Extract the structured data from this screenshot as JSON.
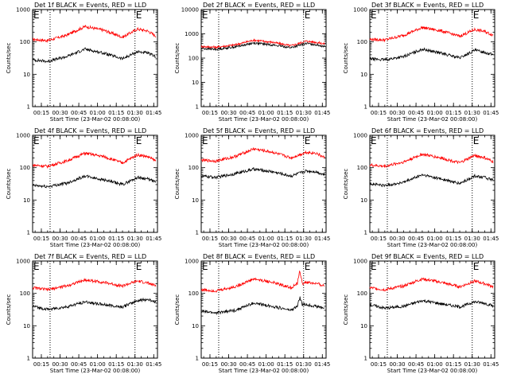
{
  "chart_data": [
    {
      "type": "line",
      "title": "Det 1f BLACK = Events, RED = LLD",
      "xlabel": "Start Time (23-Mar-02 00:08:00)",
      "ylabel": "Counts/sec",
      "yscale": "log",
      "ylim": [
        1,
        1000
      ],
      "xticklabels": [
        "00:15",
        "00:30",
        "00:45",
        "01:00",
        "01:15",
        "01:30",
        "01:45"
      ],
      "yticklabels": [
        "1",
        "10",
        "100",
        "1000"
      ],
      "event_lines": [
        "00:22",
        "01:30"
      ],
      "flag_label": "E",
      "series": [
        {
          "color": "#ff0000",
          "x": [
            "00:08",
            "00:20",
            "00:35",
            "00:50",
            "01:05",
            "01:20",
            "01:32",
            "01:40",
            "01:47"
          ],
          "values": [
            120,
            110,
            160,
            300,
            230,
            140,
            250,
            220,
            150
          ]
        },
        {
          "color": "#000000",
          "x": [
            "00:08",
            "00:20",
            "00:35",
            "00:50",
            "01:05",
            "01:20",
            "01:32",
            "01:40",
            "01:47"
          ],
          "values": [
            28,
            25,
            35,
            60,
            45,
            30,
            50,
            45,
            35
          ]
        }
      ]
    },
    {
      "type": "line",
      "title": "Det 2f BLACK = Events, RED = LLD",
      "xlabel": "Start Time (23-Mar-02 00:08:00)",
      "ylabel": "Counts/sec",
      "yscale": "log",
      "ylim": [
        1,
        10000
      ],
      "xticklabels": [
        "00:15",
        "00:30",
        "00:45",
        "01:00",
        "01:15",
        "01:30",
        "01:45"
      ],
      "yticklabels": [
        "1",
        "10",
        "100",
        "1000",
        "10000"
      ],
      "event_lines": [
        "00:22",
        "01:30"
      ],
      "flag_label": "E",
      "series": [
        {
          "color": "#ff0000",
          "x": [
            "00:08",
            "00:20",
            "00:35",
            "00:50",
            "01:05",
            "01:20",
            "01:32",
            "01:40",
            "01:47"
          ],
          "values": [
            300,
            280,
            350,
            550,
            450,
            320,
            500,
            450,
            380
          ]
        },
        {
          "color": "#000000",
          "x": [
            "00:08",
            "00:20",
            "00:35",
            "00:50",
            "01:05",
            "01:20",
            "01:32",
            "01:40",
            "01:47"
          ],
          "values": [
            250,
            230,
            290,
            420,
            350,
            270,
            400,
            360,
            300
          ]
        }
      ]
    },
    {
      "type": "line",
      "title": "Det 3f BLACK = Events, RED = LLD",
      "xlabel": "Start Time (23-Mar-02 00:08:00)",
      "ylabel": "Counts/sec",
      "yscale": "log",
      "ylim": [
        1,
        1000
      ],
      "xticklabels": [
        "00:15",
        "00:30",
        "00:45",
        "01:00",
        "01:15",
        "01:30",
        "01:45"
      ],
      "yticklabels": [
        "1",
        "10",
        "100",
        "1000"
      ],
      "event_lines": [
        "00:22",
        "01:30"
      ],
      "flag_label": "E",
      "series": [
        {
          "color": "#ff0000",
          "x": [
            "00:08",
            "00:20",
            "00:35",
            "00:50",
            "01:05",
            "01:20",
            "01:32",
            "01:40",
            "01:47"
          ],
          "values": [
            120,
            115,
            160,
            280,
            220,
            150,
            240,
            210,
            160
          ]
        },
        {
          "color": "#000000",
          "x": [
            "00:08",
            "00:20",
            "00:35",
            "00:50",
            "01:05",
            "01:20",
            "01:32",
            "01:40",
            "01:47"
          ],
          "values": [
            30,
            28,
            35,
            60,
            45,
            32,
            55,
            48,
            40
          ]
        }
      ]
    },
    {
      "type": "line",
      "title": "Det 4f BLACK = Events, RED = LLD",
      "xlabel": "Start Time (23-Mar-02 00:08:00)",
      "ylabel": "Counts/sec",
      "yscale": "log",
      "ylim": [
        1,
        1000
      ],
      "xticklabels": [
        "00:15",
        "00:30",
        "00:45",
        "01:00",
        "01:15",
        "01:30",
        "01:45"
      ],
      "yticklabels": [
        "1",
        "10",
        "100",
        "1000"
      ],
      "event_lines": [
        "00:22",
        "01:30"
      ],
      "flag_label": "E",
      "series": [
        {
          "color": "#ff0000",
          "x": [
            "00:08",
            "00:20",
            "00:35",
            "00:50",
            "01:05",
            "01:20",
            "01:32",
            "01:40",
            "01:47"
          ],
          "values": [
            120,
            110,
            160,
            280,
            220,
            140,
            250,
            220,
            160
          ]
        },
        {
          "color": "#000000",
          "x": [
            "00:08",
            "00:20",
            "00:35",
            "00:50",
            "01:05",
            "01:20",
            "01:32",
            "01:40",
            "01:47"
          ],
          "values": [
            28,
            26,
            33,
            55,
            42,
            30,
            50,
            45,
            35
          ]
        }
      ]
    },
    {
      "type": "line",
      "title": "Det 5f BLACK = Events, RED = LLD",
      "xlabel": "Start Time (23-Mar-02 00:08:00)",
      "ylabel": "Counts/sec",
      "yscale": "log",
      "ylim": [
        1,
        1000
      ],
      "xticklabels": [
        "00:15",
        "00:30",
        "00:45",
        "01:00",
        "01:15",
        "01:30",
        "01:45"
      ],
      "yticklabels": [
        "1",
        "10",
        "100",
        "1000"
      ],
      "event_lines": [
        "00:22",
        "01:30"
      ],
      "flag_label": "E",
      "series": [
        {
          "color": "#ff0000",
          "x": [
            "00:08",
            "00:20",
            "00:35",
            "00:50",
            "01:05",
            "01:20",
            "01:32",
            "01:40",
            "01:47"
          ],
          "values": [
            170,
            160,
            220,
            380,
            300,
            200,
            300,
            280,
            200
          ]
        },
        {
          "color": "#000000",
          "x": [
            "00:08",
            "00:20",
            "00:35",
            "00:50",
            "01:05",
            "01:20",
            "01:32",
            "01:40",
            "01:47"
          ],
          "values": [
            55,
            50,
            65,
            90,
            75,
            55,
            80,
            75,
            60
          ]
        }
      ]
    },
    {
      "type": "line",
      "title": "Det 6f BLACK = Events, RED = LLD",
      "xlabel": "Start Time (23-Mar-02 00:08:00)",
      "ylabel": "Counts/sec",
      "yscale": "log",
      "ylim": [
        1,
        1000
      ],
      "xticklabels": [
        "00:15",
        "00:30",
        "00:45",
        "01:00",
        "01:15",
        "01:30",
        "01:45"
      ],
      "yticklabels": [
        "1",
        "10",
        "100",
        "1000"
      ],
      "event_lines": [
        "00:22",
        "01:30"
      ],
      "flag_label": "E",
      "series": [
        {
          "color": "#ff0000",
          "x": [
            "00:08",
            "00:20",
            "00:35",
            "00:50",
            "01:05",
            "01:20",
            "01:32",
            "01:40",
            "01:47"
          ],
          "values": [
            120,
            110,
            150,
            260,
            200,
            140,
            240,
            200,
            150
          ]
        },
        {
          "color": "#000000",
          "x": [
            "00:08",
            "00:20",
            "00:35",
            "00:50",
            "01:05",
            "01:20",
            "01:32",
            "01:40",
            "01:47"
          ],
          "values": [
            32,
            28,
            35,
            60,
            45,
            32,
            55,
            50,
            40
          ]
        }
      ]
    },
    {
      "type": "line",
      "title": "Det 7f BLACK = Events, RED = LLD",
      "xlabel": "Start Time (23-Mar-02 00:08:00)",
      "ylabel": "Counts/sec",
      "yscale": "log",
      "ylim": [
        1,
        1000
      ],
      "xticklabels": [
        "00:15",
        "00:30",
        "00:45",
        "01:00",
        "01:15",
        "01:30",
        "01:45"
      ],
      "yticklabels": [
        "1",
        "10",
        "100",
        "1000"
      ],
      "event_lines": [
        "00:22",
        "01:30"
      ],
      "flag_label": "E",
      "series": [
        {
          "color": "#ff0000",
          "x": [
            "00:08",
            "00:20",
            "00:35",
            "00:50",
            "01:05",
            "01:20",
            "01:32",
            "01:40",
            "01:47"
          ],
          "values": [
            150,
            130,
            170,
            260,
            220,
            170,
            240,
            210,
            170
          ]
        },
        {
          "color": "#000000",
          "x": [
            "00:08",
            "00:20",
            "00:35",
            "00:50",
            "01:05",
            "01:20",
            "01:32",
            "01:40",
            "01:47"
          ],
          "values": [
            40,
            32,
            38,
            55,
            45,
            38,
            60,
            65,
            55
          ]
        }
      ]
    },
    {
      "type": "line",
      "title": "Det 8f BLACK = Events, RED = LLD",
      "xlabel": "Start Time (23-Mar-02 00:08:00)",
      "ylabel": "Counts/sec",
      "yscale": "log",
      "ylim": [
        1,
        1000
      ],
      "xticklabels": [
        "00:15",
        "00:30",
        "00:45",
        "01:00",
        "01:15",
        "01:30",
        "01:45"
      ],
      "yticklabels": [
        "1",
        "10",
        "100",
        "1000"
      ],
      "event_lines": [
        "00:22",
        "01:30"
      ],
      "flag_label": "E",
      "series": [
        {
          "color": "#ff0000",
          "x": [
            "00:08",
            "00:20",
            "00:35",
            "00:50",
            "01:05",
            "01:20",
            "01:25",
            "01:27",
            "01:29",
            "01:32",
            "01:40",
            "01:47"
          ],
          "values": [
            130,
            120,
            160,
            280,
            220,
            150,
            200,
            500,
            200,
            220,
            200,
            170
          ]
        },
        {
          "color": "#000000",
          "x": [
            "00:08",
            "00:20",
            "00:35",
            "00:50",
            "01:05",
            "01:20",
            "01:25",
            "01:27",
            "01:29",
            "01:32",
            "01:40",
            "01:47"
          ],
          "values": [
            28,
            25,
            30,
            50,
            40,
            30,
            40,
            75,
            45,
            45,
            40,
            35
          ]
        }
      ]
    },
    {
      "type": "line",
      "title": "Det 9f BLACK = Events, RED = LLD",
      "xlabel": "Start Time (23-Mar-02 00:08:00)",
      "ylabel": "Counts/sec",
      "yscale": "log",
      "ylim": [
        1,
        1000
      ],
      "xticklabels": [
        "00:15",
        "00:30",
        "00:45",
        "01:00",
        "01:15",
        "01:30",
        "01:45"
      ],
      "yticklabels": [
        "1",
        "10",
        "100",
        "1000"
      ],
      "event_lines": [
        "00:22",
        "01:30"
      ],
      "flag_label": "E",
      "series": [
        {
          "color": "#ff0000",
          "x": [
            "00:08",
            "00:20",
            "00:35",
            "00:50",
            "01:05",
            "01:20",
            "01:32",
            "01:40",
            "01:47"
          ],
          "values": [
            150,
            130,
            170,
            280,
            220,
            160,
            240,
            200,
            160
          ]
        },
        {
          "color": "#000000",
          "x": [
            "00:08",
            "00:20",
            "00:35",
            "00:50",
            "01:05",
            "01:20",
            "01:32",
            "01:40",
            "01:47"
          ],
          "values": [
            45,
            35,
            40,
            60,
            48,
            38,
            55,
            50,
            40
          ]
        }
      ]
    }
  ]
}
